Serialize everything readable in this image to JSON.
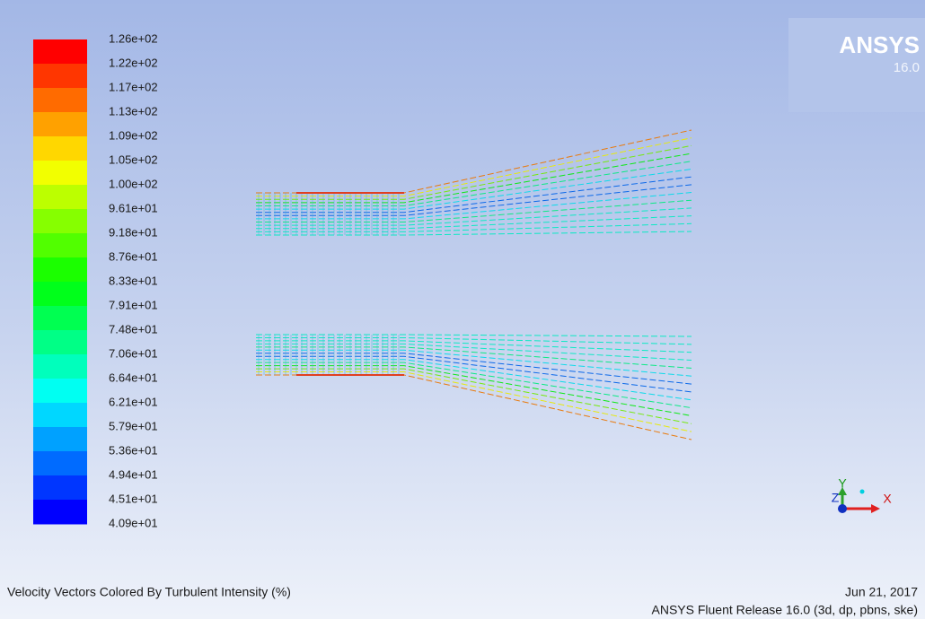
{
  "legend": {
    "labels": [
      "1.26e+02",
      "1.22e+02",
      "1.17e+02",
      "1.13e+02",
      "1.09e+02",
      "1.05e+02",
      "1.00e+02",
      "9.61e+01",
      "9.18e+01",
      "8.76e+01",
      "8.33e+01",
      "7.91e+01",
      "7.48e+01",
      "7.06e+01",
      "6.64e+01",
      "6.21e+01",
      "5.79e+01",
      "5.36e+01",
      "4.94e+01",
      "4.51e+01",
      "4.09e+01"
    ]
  },
  "logo": {
    "name": "ANSYS",
    "version": "16.0"
  },
  "triad": {
    "y": "Y",
    "z": "Z",
    "x": "X"
  },
  "footer": {
    "caption": "Velocity Vectors Colored By Turbulent Intensity (%)",
    "date": "Jun 21, 2017",
    "release": "ANSYS Fluent Release 16.0 (3d, dp, pbns, ske)"
  }
}
